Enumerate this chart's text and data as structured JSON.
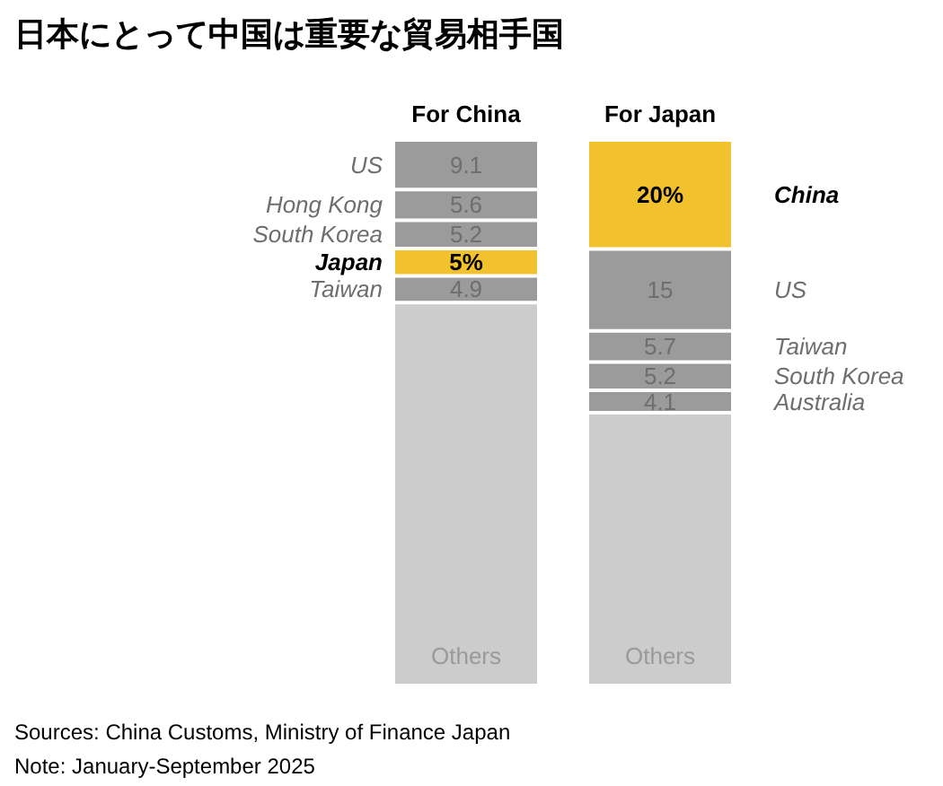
{
  "chart_data": [
    {
      "type": "bar",
      "title": "日本にとって中国は重要な貿易相手国",
      "categories": [
        "For China"
      ],
      "stacked": true,
      "ylim": [
        0,
        100
      ],
      "tick_labels": "x",
      "legend": "left",
      "series": [
        {
          "name": "Others",
          "color": "#cccccc",
          "values": [
            70.2
          ],
          "value_labels": [
            null
          ]
        },
        {
          "name": "Taiwan",
          "color": "#9b9b9b",
          "values": [
            4.9
          ],
          "value_labels": [
            "4.9"
          ]
        },
        {
          "name": "Japan",
          "color": "#f2c12e",
          "values": [
            5
          ],
          "value_labels": [
            "5%"
          ]
        },
        {
          "name": "South Korea",
          "color": "#9b9b9b",
          "values": [
            5.2
          ],
          "value_labels": [
            "5.2"
          ]
        },
        {
          "name": "Hong Kong",
          "color": "#9b9b9b",
          "values": [
            5.6
          ],
          "value_labels": [
            "5.6"
          ]
        },
        {
          "name": "US",
          "color": "#9b9b9b",
          "values": [
            9.1
          ],
          "value_labels": [
            "9.1"
          ]
        }
      ],
      "annotations": [
        "Sources: China Customs, Ministry of Finance Japan",
        "Note: January-September 2025"
      ]
    },
    {
      "type": "bar",
      "categories": [
        "For Japan"
      ],
      "stacked": true,
      "ylim": [
        0,
        100
      ],
      "tick_labels": "x",
      "legend": "right",
      "series": [
        {
          "name": "Others",
          "color": "#cccccc",
          "values": [
            50
          ],
          "value_labels": [
            null
          ]
        },
        {
          "name": "Australia",
          "color": "#9b9b9b",
          "values": [
            4.1
          ],
          "value_labels": [
            "4.1"
          ]
        },
        {
          "name": "South Korea",
          "color": "#9b9b9b",
          "values": [
            5.2
          ],
          "value_labels": [
            "5.2"
          ]
        },
        {
          "name": "Taiwan",
          "color": "#9b9b9b",
          "values": [
            5.7
          ],
          "value_labels": [
            "5.7"
          ]
        },
        {
          "name": "US",
          "color": "#9b9b9b",
          "values": [
            15
          ],
          "value_labels": [
            "15"
          ]
        },
        {
          "name": "China",
          "color": "#f2c12e",
          "values": [
            20
          ],
          "value_labels": [
            "20%"
          ]
        }
      ]
    }
  ]
}
